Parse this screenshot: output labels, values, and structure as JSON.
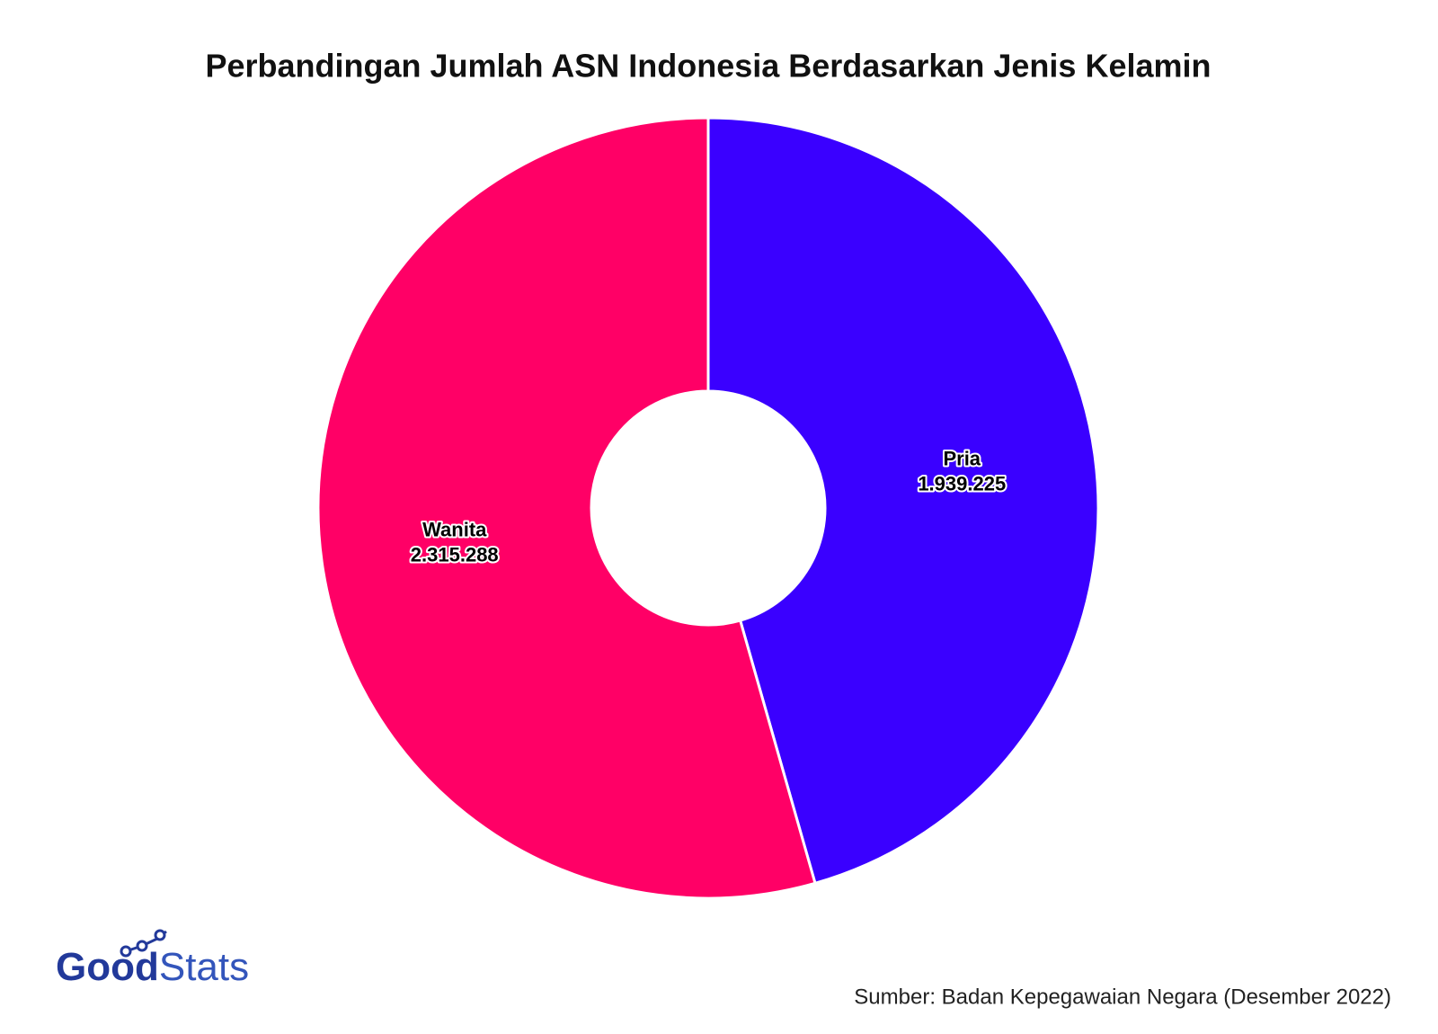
{
  "chart_data": {
    "type": "donut",
    "title": "Perbandingan Jumlah ASN Indonesia Berdasarkan Jenis Kelamin",
    "categories": [
      "Pria",
      "Wanita"
    ],
    "values": [
      1939225,
      2315288
    ],
    "value_labels": [
      "1.939.225",
      "2.315.288"
    ],
    "colors": [
      "#3a00ff",
      "#ff0066"
    ],
    "source": "Sumber: Badan Kepegawaian Negara (Desember 2022)"
  },
  "logo": [
    "Good",
    "Stats"
  ]
}
